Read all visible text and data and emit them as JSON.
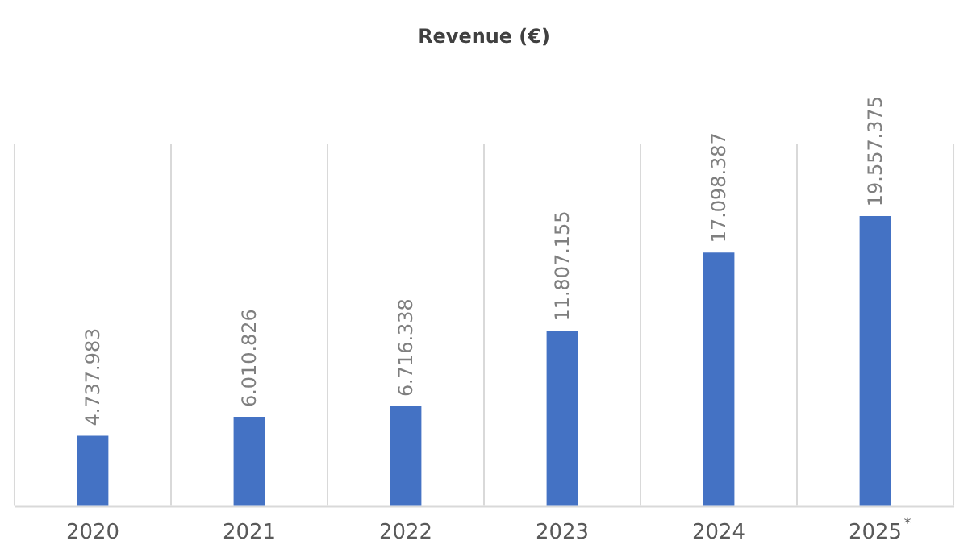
{
  "chart_data": {
    "type": "bar",
    "title": "Revenue (€)",
    "categories": [
      "2020",
      "2021",
      "2022",
      "2023",
      "2024",
      "2025$^{*}$"
    ],
    "values": [
      4737983,
      6010826,
      6716338,
      11807155,
      17098387,
      19557375
    ],
    "value_labels": [
      "4.737.983",
      "6.010.826",
      "6.716.338",
      "11.807.155",
      "17.098.387",
      "19.557.375"
    ],
    "color": "#4472c4",
    "grid": "x",
    "legend": false,
    "tick_labels": "x"
  }
}
